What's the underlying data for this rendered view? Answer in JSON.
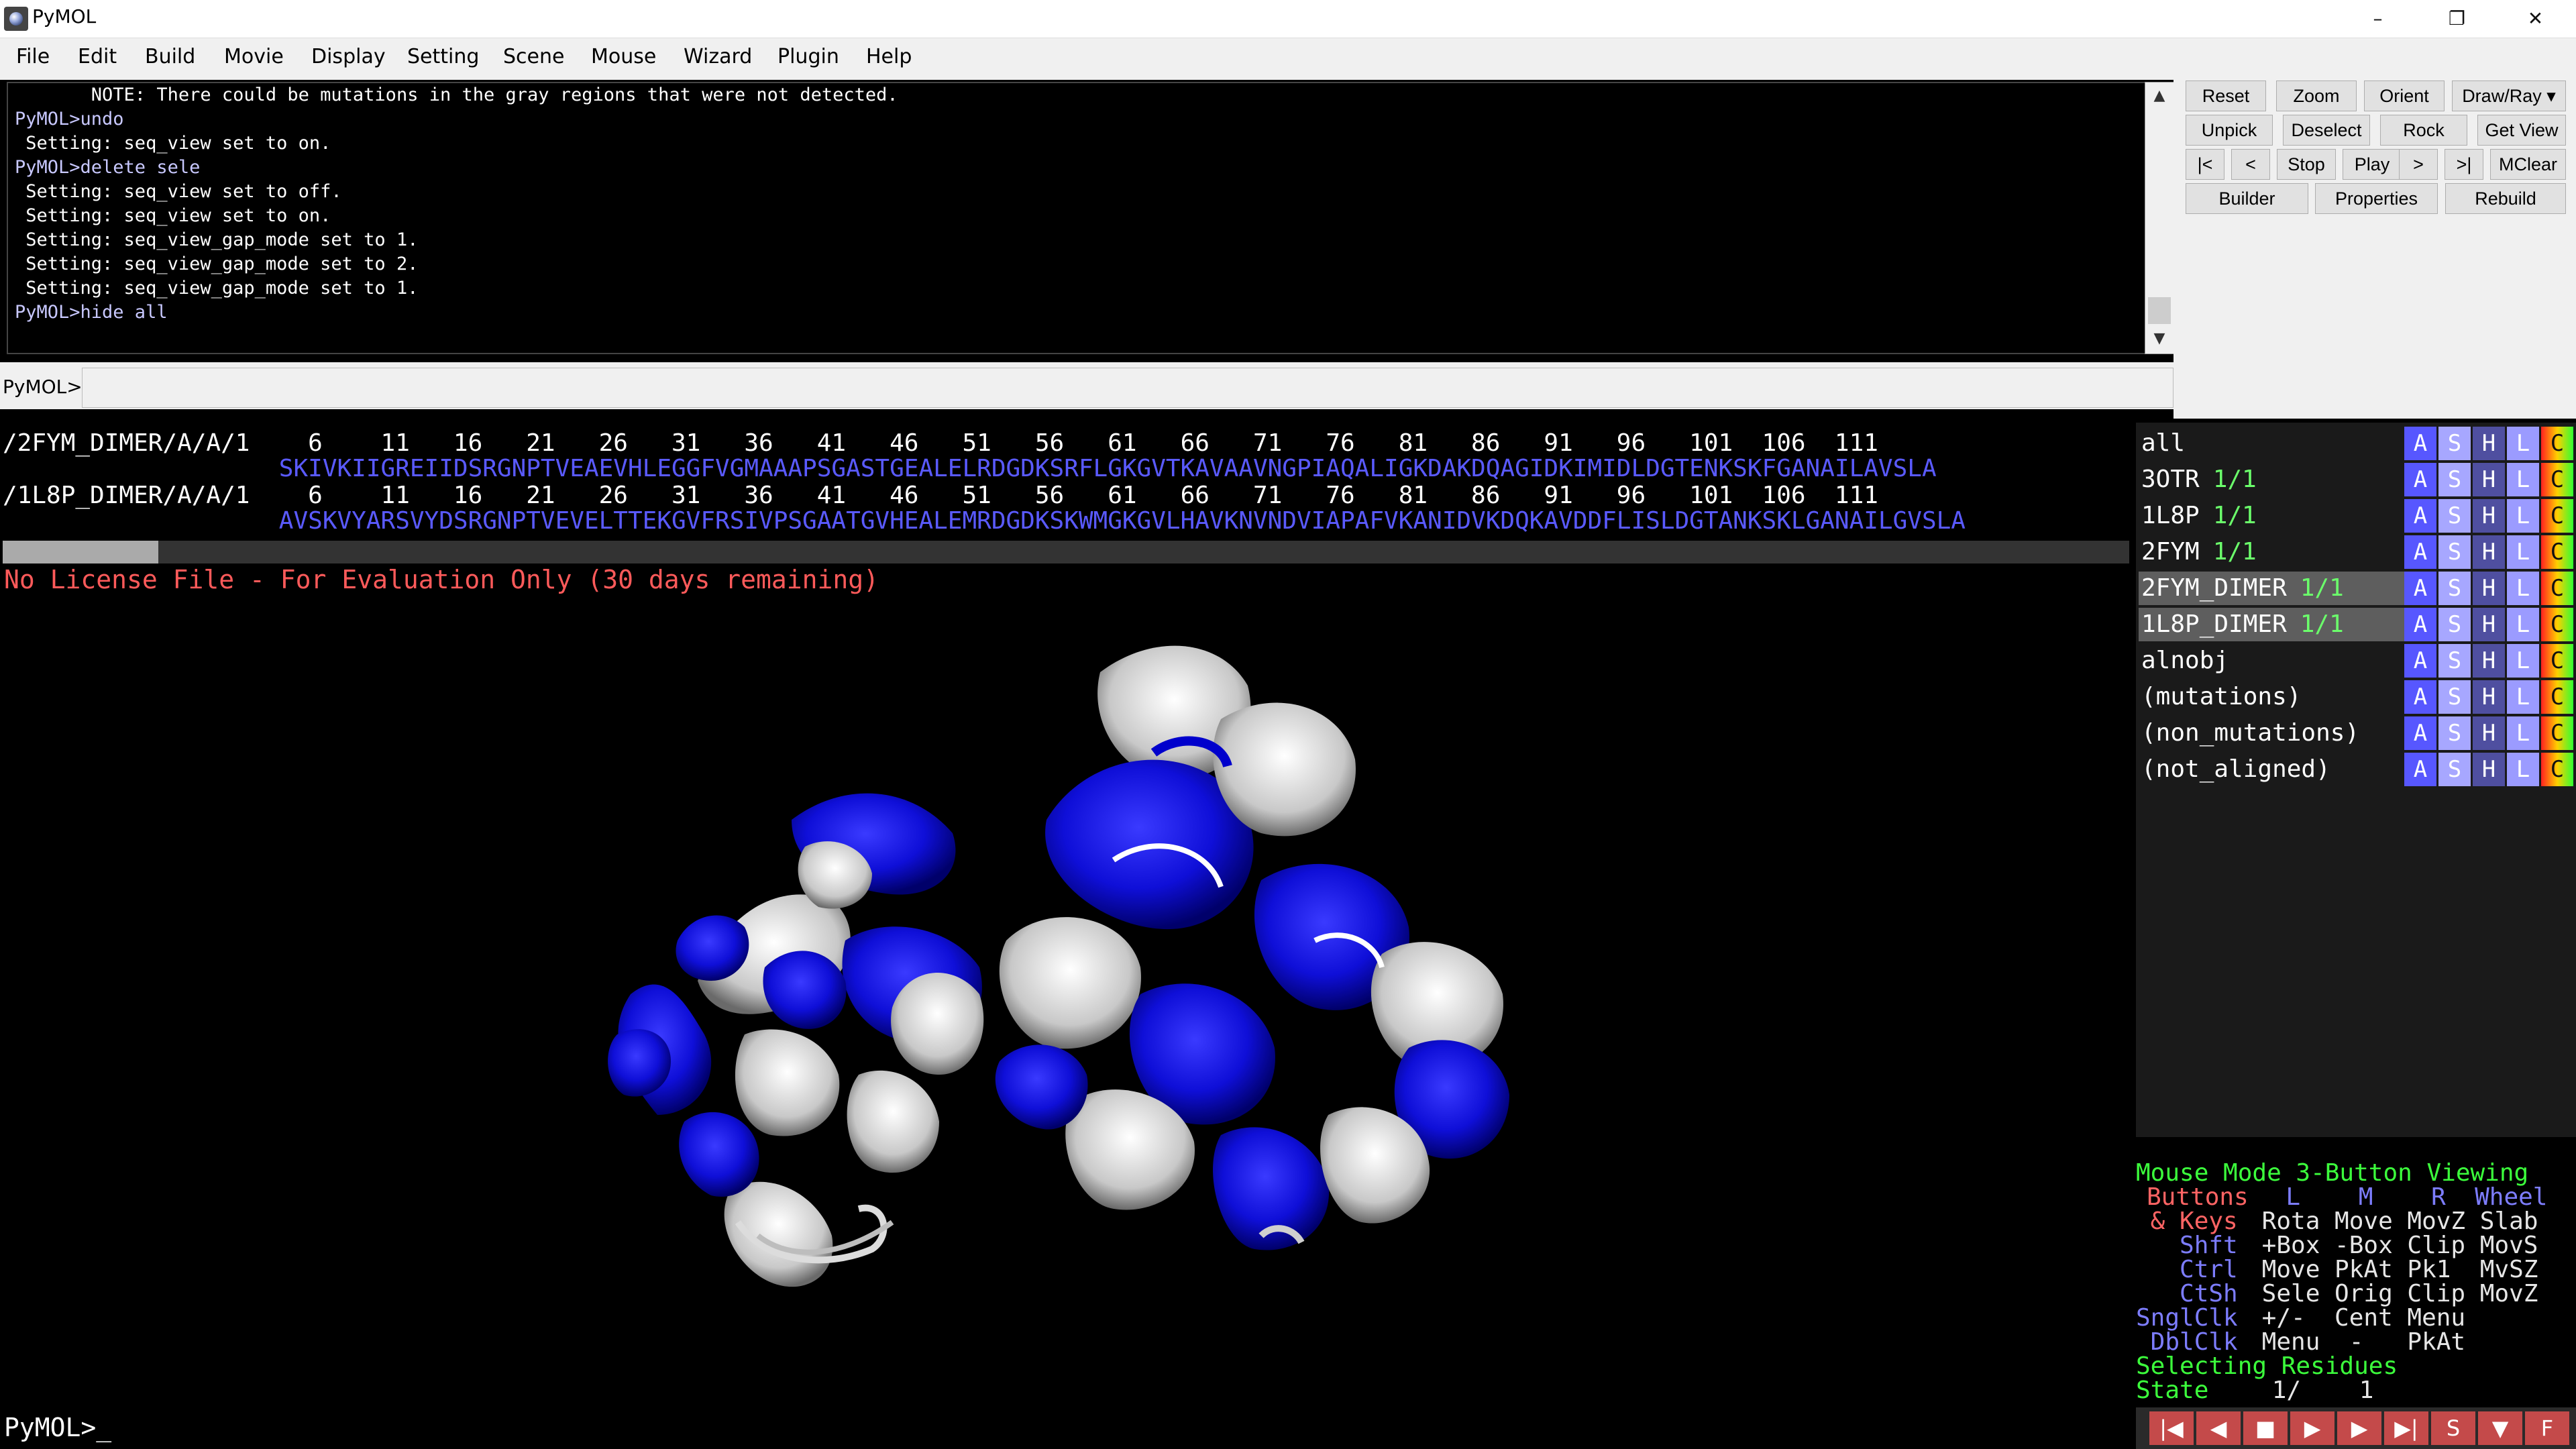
{
  "window": {
    "title": "PyMOL",
    "minimize": "–",
    "maximize": "❐",
    "close": "✕"
  },
  "menu": [
    "File",
    "Edit",
    "Build",
    "Movie",
    "Display",
    "Setting",
    "Scene",
    "Mouse",
    "Wizard",
    "Plugin",
    "Help"
  ],
  "console": {
    "lines": [
      {
        "text": "       NOTE: There could be mutations in the gray regions that were not detected.",
        "cmd": false
      },
      {
        "text": "PyMOL>undo",
        "cmd": true
      },
      {
        "text": " Setting: seq_view set to on.",
        "cmd": false
      },
      {
        "text": "PyMOL>delete sele",
        "cmd": true
      },
      {
        "text": " Setting: seq_view set to off.",
        "cmd": false
      },
      {
        "text": " Setting: seq_view set to on.",
        "cmd": false
      },
      {
        "text": " Setting: seq_view_gap_mode set to 1.",
        "cmd": false
      },
      {
        "text": " Setting: seq_view_gap_mode set to 2.",
        "cmd": false
      },
      {
        "text": " Setting: seq_view_gap_mode set to 1.",
        "cmd": false
      },
      {
        "text": "PyMOL>hide all",
        "cmd": true
      }
    ]
  },
  "command": {
    "prompt": "PyMOL>",
    "value": ""
  },
  "buttons": {
    "row1": [
      "Reset",
      "Zoom",
      "Orient",
      "Draw/Ray"
    ],
    "row2": [
      "Unpick",
      "Deselect",
      "Rock",
      "Get View"
    ],
    "row3": [
      "|<",
      "<",
      "Stop",
      "Play",
      ">",
      ">|",
      "MClear"
    ],
    "row4": [
      "Builder",
      "Properties",
      "Rebuild"
    ]
  },
  "sequence": {
    "row1_label": "/2FYM_DIMER/A/A/1    6    11   16   21   26   31   36   41   46   51   56   61   66   71   76   81   86   91   96   101  106  111",
    "row1_seq": "                   SKIVKIIGREIIDSRGNPTVEAEVHLEGGFVGMAAAPSGASTGEALELRDGDKSRFLGKGVTKAVAAVNGPIAQALIGKDAKDQAGIDKIMIDLDGTENKSKFGANAILAVSLA",
    "row2_label": "/1L8P_DIMER/A/A/1    6    11   16   21   26   31   36   41   46   51   56   61   66   71   76   81   86   91   96   101  106  111",
    "row2_seq": "                   AVSKVYARSVYDSRGNPTVEVELTTEKGVFRSIVPSGAATGVHEALEMRDGDKSKWMGKGVLHAVKNVNDVIAPAFVKANIDVKDQKAVDDFLISLDGTANKSKLGANAILGVSLA"
  },
  "viewport": {
    "license": "No License File - For Evaluation Only (30 days remaining)",
    "bottom_prompt": "PyMOL>_"
  },
  "objects": [
    {
      "name": "all",
      "state": "",
      "hl": false
    },
    {
      "name": "3OTR",
      "state": "1/1",
      "hl": false
    },
    {
      "name": "1L8P",
      "state": "1/1",
      "hl": false
    },
    {
      "name": "2FYM",
      "state": "1/1",
      "hl": false
    },
    {
      "name": "2FYM_DIMER",
      "state": "1/1",
      "hl": true
    },
    {
      "name": "1L8P_DIMER",
      "state": "1/1",
      "hl": true
    },
    {
      "name": "alnobj",
      "state": "",
      "hl": false
    },
    {
      "name": "(mutations)",
      "state": "",
      "hl": false
    },
    {
      "name": "(non_mutations)",
      "state": "",
      "hl": false
    },
    {
      "name": "(not_aligned)",
      "state": "",
      "hl": false
    }
  ],
  "object_controls": [
    "A",
    "S",
    "H",
    "L",
    "C"
  ],
  "mouse_mode": {
    "title": "Mouse Mode 3-Button Viewing",
    "buttons_label": "Buttons",
    "buttons_cols": "  L    M    R  Wheel",
    "keys_label": " & Keys",
    "keys_vals": " Rota Move MovZ Slab",
    "shft_label": "   Shft",
    "shft_vals": " +Box -Box Clip MovS",
    "ctrl_label": "   Ctrl",
    "ctrl_vals": " Move PkAt Pk1  MvSZ",
    "ctsh_label": "   CtSh",
    "ctsh_vals": " Sele Orig Clip MovZ",
    "sngl_label": "SnglClk",
    "sngl_vals": " +/-  Cent Menu",
    "dbl_label": " DblClk",
    "dbl_vals": " Menu  -   PkAt",
    "selecting": "Selecting Residues",
    "state_label": "State",
    "state_vals": "    1/    1"
  },
  "transport": [
    "|◀",
    "◀",
    "■",
    "▶",
    "▶",
    "▶|",
    "S",
    "▼",
    "F"
  ]
}
